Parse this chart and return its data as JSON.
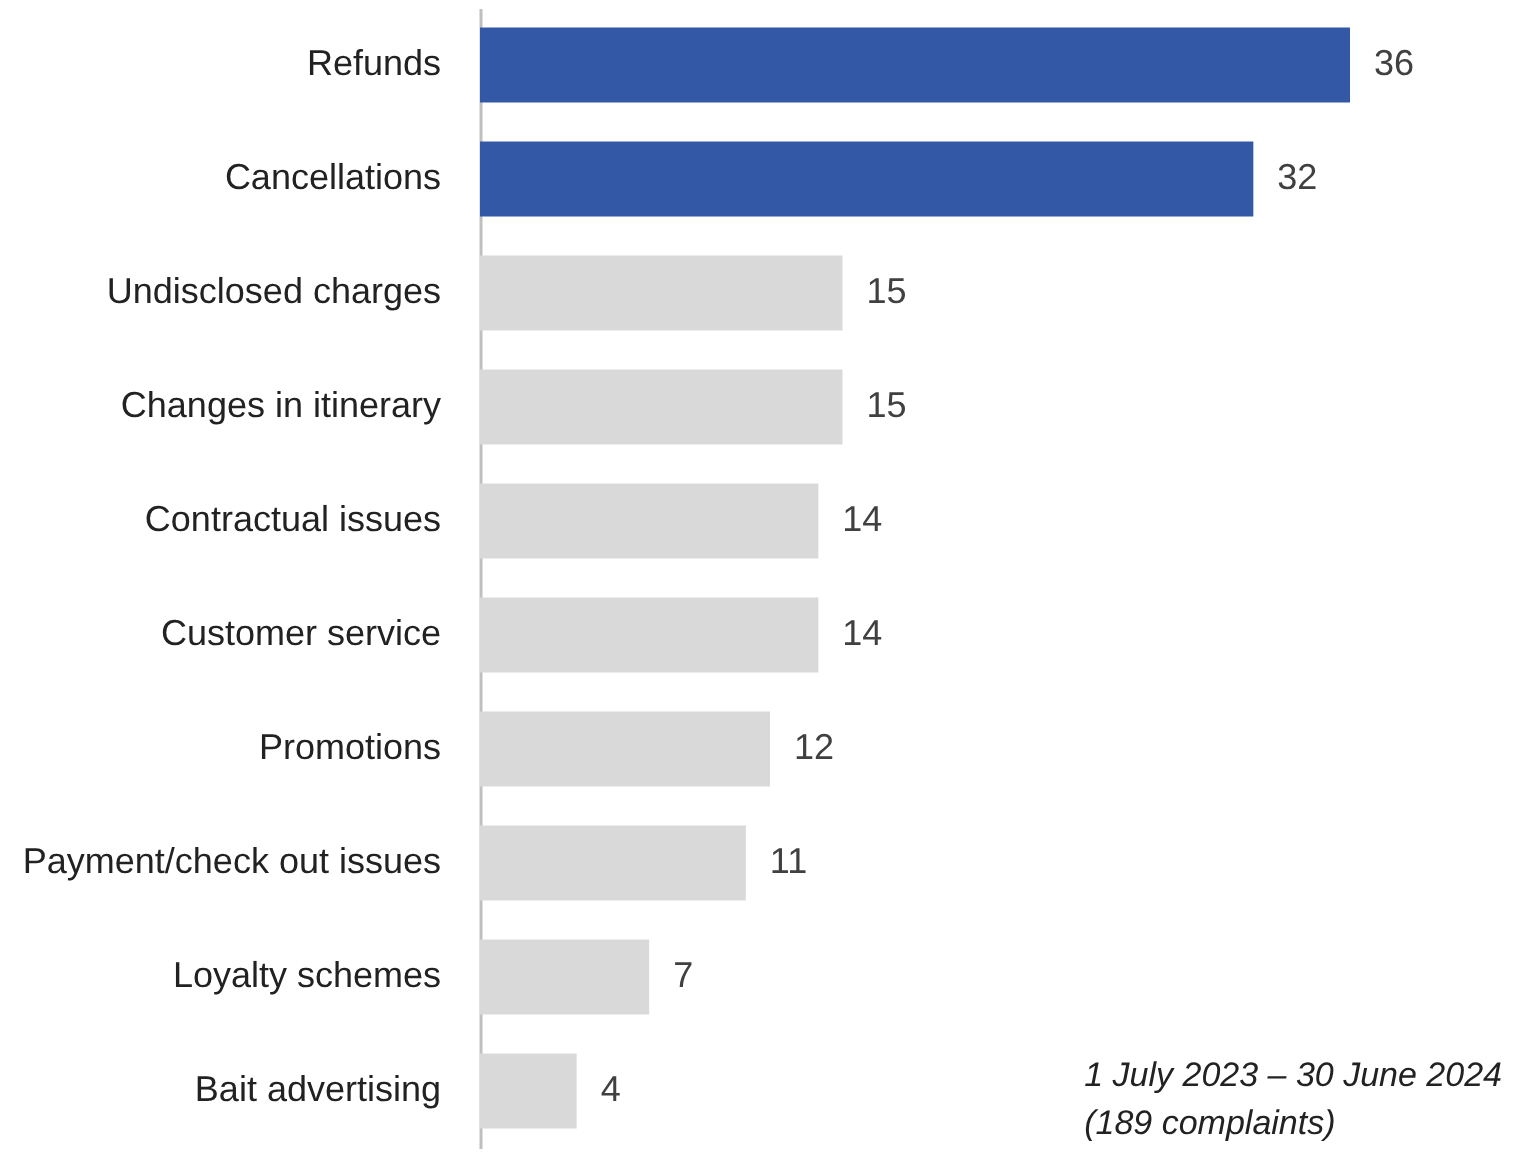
{
  "chart_data": {
    "type": "bar",
    "orientation": "horizontal",
    "categories": [
      "Refunds",
      "Cancellations",
      "Undisclosed charges",
      "Changes in itinerary",
      "Contractual issues",
      "Customer service",
      "Promotions",
      "Payment/check out issues",
      "Loyalty schemes",
      "Bait advertising"
    ],
    "values": [
      36,
      32,
      15,
      15,
      14,
      14,
      12,
      11,
      7,
      4
    ],
    "colors": [
      "#3359a6",
      "#3359a6",
      "#d9d9d9",
      "#d9d9d9",
      "#d9d9d9",
      "#d9d9d9",
      "#d9d9d9",
      "#d9d9d9",
      "#d9d9d9",
      "#d9d9d9"
    ],
    "data_labels": true,
    "annotations": [
      "1 July 2023 – 30 June 2024",
      "(189 complaints)"
    ]
  }
}
